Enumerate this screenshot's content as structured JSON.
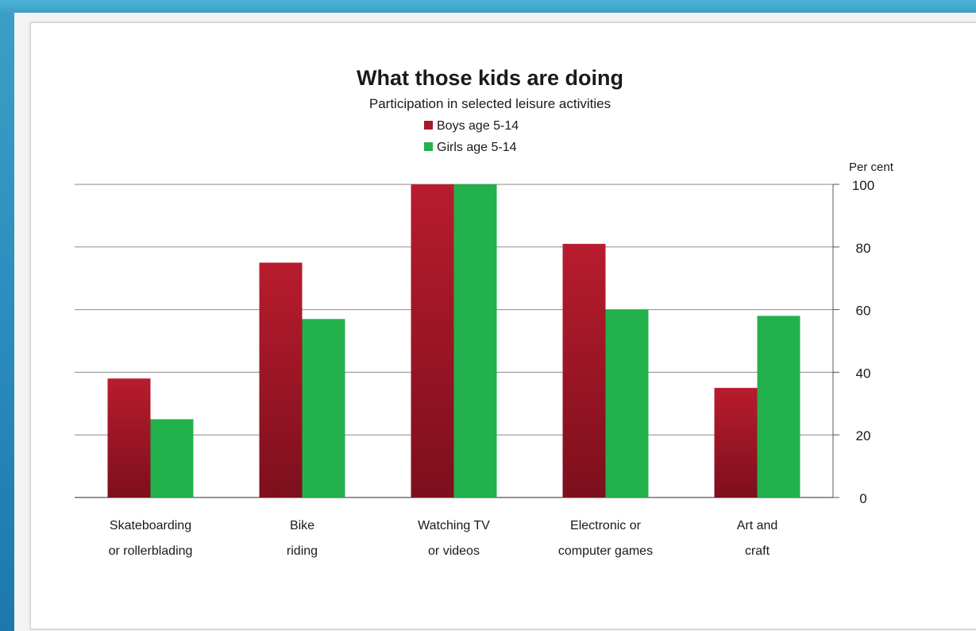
{
  "chart_data": {
    "type": "bar",
    "title": "What those kids are doing",
    "subtitle": "Participation in selected leisure activities",
    "ylabel": "Per cent",
    "xlabel": "",
    "ylim": [
      0,
      100
    ],
    "yticks": [
      0,
      20,
      40,
      60,
      80,
      100
    ],
    "grid": true,
    "legend_position": "top-center",
    "categories": [
      [
        "Skateboarding",
        "or rollerblading"
      ],
      [
        "Bike",
        "riding"
      ],
      [
        "Watching TV",
        "or videos"
      ],
      [
        "Electronic or",
        "computer games"
      ],
      [
        "Art and",
        "craft"
      ]
    ],
    "series": [
      {
        "name": "Boys age 5-14",
        "color": "#a8182a",
        "values": [
          38,
          75,
          100,
          81,
          35
        ]
      },
      {
        "name": "Girls age 5-14",
        "color": "#22b14c",
        "values": [
          25,
          57,
          100,
          60,
          58
        ]
      }
    ]
  }
}
